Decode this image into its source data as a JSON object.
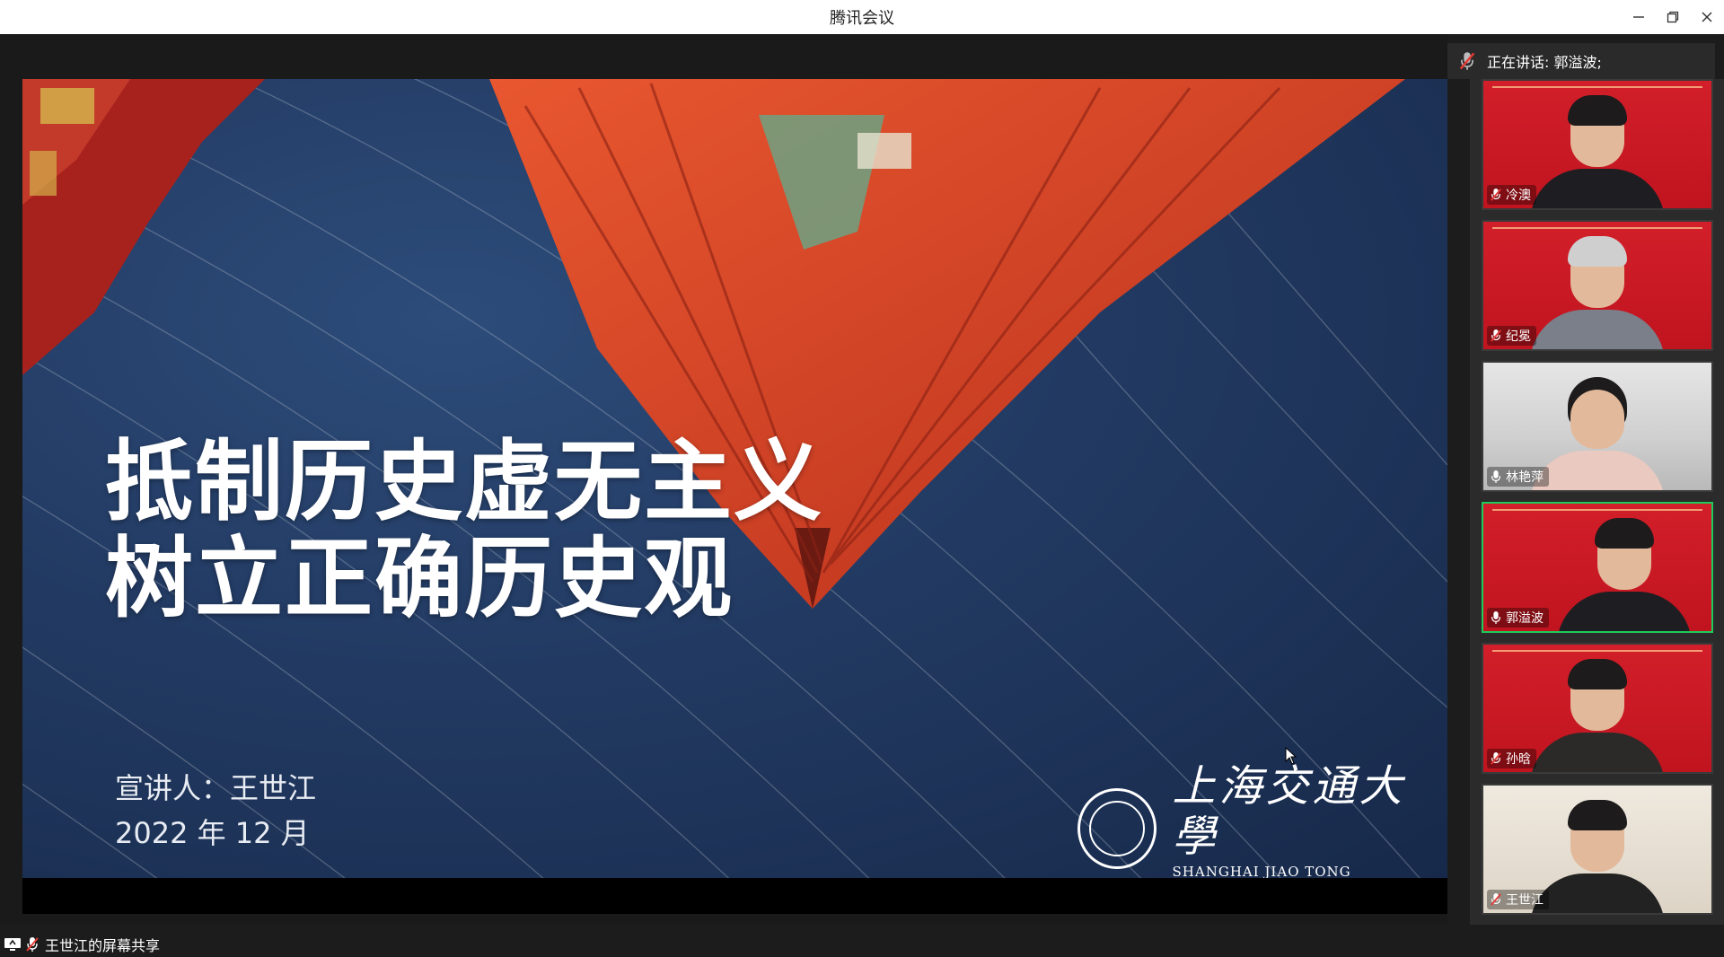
{
  "window": {
    "title": "腾讯会议",
    "minimize_icon": "minimize-icon",
    "restore_icon": "restore-icon",
    "close_icon": "close-icon"
  },
  "speaking": {
    "label": "正在讲话: 郭溢波;"
  },
  "slide": {
    "title_line1": "抵制历史虚无主义",
    "title_line2": "树立正确历史观",
    "presenter": "宣讲人：王世江",
    "date": "2022 年 12 月",
    "logo_cn": "上海交通大學",
    "logo_en": "SHANGHAI JIAO TONG UNIVERSITY",
    "colors": {
      "sky": "#223a62",
      "roof": "#d2462a"
    }
  },
  "share": {
    "label": "王世江的屏幕共享"
  },
  "participants": [
    {
      "name": "冷澳",
      "mic": "muted",
      "background": "red"
    },
    {
      "name": "纪冕",
      "mic": "muted",
      "background": "red"
    },
    {
      "name": "林艳萍",
      "mic": "on",
      "background": "room"
    },
    {
      "name": "郭溢波",
      "mic": "on",
      "background": "red",
      "active": true
    },
    {
      "name": "孙晗",
      "mic": "muted",
      "background": "red"
    },
    {
      "name": "王世江",
      "mic": "muted",
      "background": "room"
    }
  ],
  "accent_colors": {
    "active_border": "#1ecb5a",
    "muted_mic": "#e53935"
  }
}
